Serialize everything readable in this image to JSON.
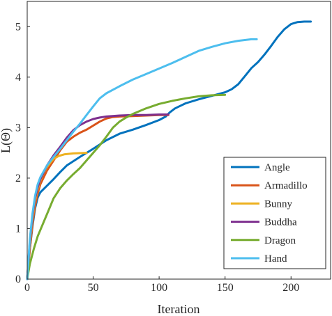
{
  "chart_data": {
    "type": "line",
    "title": "",
    "xlabel": "Iteration",
    "ylabel": "L(Θ)",
    "xlim": [
      0,
      230
    ],
    "ylim": [
      0,
      5.5
    ],
    "xticks": [
      0,
      50,
      100,
      150,
      200
    ],
    "yticks": [
      0,
      1,
      2,
      3,
      4,
      5
    ],
    "grid": false,
    "legend_position": "bottom-right",
    "series": [
      {
        "name": "Angle",
        "color": "#0072BD",
        "points": [
          [
            0,
            0
          ],
          [
            2,
            0.6
          ],
          [
            4,
            1.05
          ],
          [
            6,
            1.4
          ],
          [
            8,
            1.62
          ],
          [
            10,
            1.72
          ],
          [
            15,
            1.85
          ],
          [
            20,
            1.98
          ],
          [
            25,
            2.12
          ],
          [
            30,
            2.25
          ],
          [
            40,
            2.42
          ],
          [
            50,
            2.58
          ],
          [
            60,
            2.75
          ],
          [
            70,
            2.88
          ],
          [
            80,
            2.96
          ],
          [
            90,
            3.05
          ],
          [
            100,
            3.15
          ],
          [
            105,
            3.22
          ],
          [
            108,
            3.3
          ],
          [
            112,
            3.38
          ],
          [
            120,
            3.48
          ],
          [
            130,
            3.56
          ],
          [
            140,
            3.63
          ],
          [
            150,
            3.7
          ],
          [
            155,
            3.76
          ],
          [
            160,
            3.86
          ],
          [
            165,
            4.02
          ],
          [
            170,
            4.18
          ],
          [
            175,
            4.3
          ],
          [
            180,
            4.45
          ],
          [
            185,
            4.62
          ],
          [
            190,
            4.8
          ],
          [
            195,
            4.95
          ],
          [
            200,
            5.05
          ],
          [
            205,
            5.09
          ],
          [
            210,
            5.1
          ],
          [
            215,
            5.1
          ]
        ]
      },
      {
        "name": "Armadillo",
        "color": "#D95319",
        "points": [
          [
            0,
            0
          ],
          [
            2,
            0.6
          ],
          [
            4,
            1.1
          ],
          [
            6,
            1.45
          ],
          [
            8,
            1.7
          ],
          [
            10,
            1.88
          ],
          [
            15,
            2.15
          ],
          [
            20,
            2.35
          ],
          [
            25,
            2.55
          ],
          [
            30,
            2.72
          ],
          [
            35,
            2.82
          ],
          [
            40,
            2.9
          ],
          [
            45,
            2.96
          ],
          [
            50,
            3.04
          ],
          [
            55,
            3.12
          ],
          [
            60,
            3.18
          ],
          [
            65,
            3.21
          ],
          [
            70,
            3.22
          ],
          [
            80,
            3.23
          ],
          [
            90,
            3.24
          ],
          [
            100,
            3.25
          ],
          [
            107,
            3.25
          ]
        ]
      },
      {
        "name": "Bunny",
        "color": "#EDB120",
        "points": [
          [
            0,
            0
          ],
          [
            2,
            0.7
          ],
          [
            4,
            1.2
          ],
          [
            6,
            1.55
          ],
          [
            8,
            1.78
          ],
          [
            10,
            1.95
          ],
          [
            12,
            2.08
          ],
          [
            15,
            2.22
          ],
          [
            18,
            2.32
          ],
          [
            20,
            2.38
          ],
          [
            24,
            2.44
          ],
          [
            28,
            2.47
          ],
          [
            35,
            2.49
          ],
          [
            45,
            2.5
          ]
        ]
      },
      {
        "name": "Buddha",
        "color": "#7E2F8E",
        "points": [
          [
            0,
            0
          ],
          [
            2,
            0.75
          ],
          [
            4,
            1.25
          ],
          [
            6,
            1.6
          ],
          [
            8,
            1.82
          ],
          [
            10,
            1.98
          ],
          [
            15,
            2.25
          ],
          [
            20,
            2.45
          ],
          [
            25,
            2.62
          ],
          [
            30,
            2.8
          ],
          [
            35,
            2.95
          ],
          [
            40,
            3.05
          ],
          [
            45,
            3.12
          ],
          [
            50,
            3.17
          ],
          [
            55,
            3.2
          ],
          [
            60,
            3.22
          ],
          [
            70,
            3.24
          ],
          [
            80,
            3.25
          ],
          [
            90,
            3.25
          ],
          [
            100,
            3.26
          ],
          [
            107,
            3.26
          ]
        ]
      },
      {
        "name": "Dragon",
        "color": "#77AC30",
        "points": [
          [
            0,
            0
          ],
          [
            2,
            0.3
          ],
          [
            5,
            0.6
          ],
          [
            8,
            0.85
          ],
          [
            12,
            1.1
          ],
          [
            16,
            1.35
          ],
          [
            20,
            1.6
          ],
          [
            25,
            1.8
          ],
          [
            30,
            1.95
          ],
          [
            35,
            2.08
          ],
          [
            40,
            2.2
          ],
          [
            45,
            2.35
          ],
          [
            50,
            2.5
          ],
          [
            55,
            2.65
          ],
          [
            60,
            2.82
          ],
          [
            65,
            3.0
          ],
          [
            70,
            3.12
          ],
          [
            75,
            3.2
          ],
          [
            80,
            3.27
          ],
          [
            90,
            3.38
          ],
          [
            100,
            3.47
          ],
          [
            110,
            3.53
          ],
          [
            120,
            3.58
          ],
          [
            130,
            3.62
          ],
          [
            140,
            3.64
          ],
          [
            150,
            3.65
          ]
        ]
      },
      {
        "name": "Hand",
        "color": "#4DBEEE",
        "points": [
          [
            0,
            0
          ],
          [
            2,
            0.8
          ],
          [
            4,
            1.3
          ],
          [
            6,
            1.65
          ],
          [
            8,
            1.88
          ],
          [
            10,
            2.02
          ],
          [
            15,
            2.25
          ],
          [
            20,
            2.42
          ],
          [
            25,
            2.58
          ],
          [
            30,
            2.75
          ],
          [
            35,
            2.92
          ],
          [
            40,
            3.08
          ],
          [
            45,
            3.25
          ],
          [
            50,
            3.42
          ],
          [
            55,
            3.58
          ],
          [
            60,
            3.68
          ],
          [
            70,
            3.82
          ],
          [
            80,
            3.95
          ],
          [
            90,
            4.06
          ],
          [
            100,
            4.17
          ],
          [
            110,
            4.28
          ],
          [
            120,
            4.4
          ],
          [
            130,
            4.52
          ],
          [
            140,
            4.6
          ],
          [
            150,
            4.67
          ],
          [
            160,
            4.72
          ],
          [
            170,
            4.75
          ],
          [
            174,
            4.75
          ]
        ]
      }
    ]
  }
}
